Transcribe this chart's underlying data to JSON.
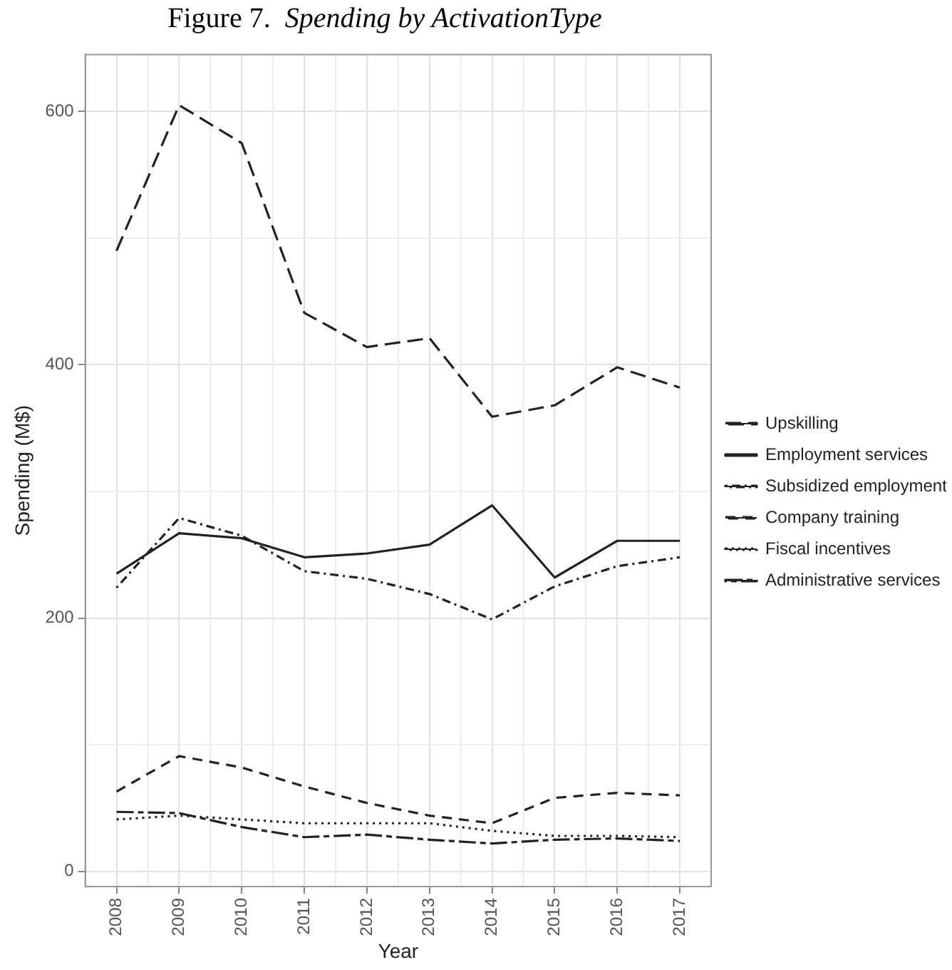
{
  "chart_data": {
    "type": "line",
    "title": "Figure 7.  Spending by ActivationType",
    "xlabel": "Year",
    "ylabel": "Spending (M$)",
    "categories": [
      "2008",
      "2009",
      "2010",
      "2011",
      "2012",
      "2013",
      "2014",
      "2015",
      "2016",
      "2017"
    ],
    "ylim": [
      -12,
      645
    ],
    "yticks": [
      0,
      {
        "value": 100,
        "label": null
      },
      200,
      {
        "value": 300,
        "label": null
      },
      400,
      {
        "value": 500,
        "label": null
      },
      600
    ],
    "grid": true,
    "legend": "right",
    "marker": "none",
    "series": [
      {
        "name": "Upskilling",
        "color": "#222222",
        "line_style": "longdash",
        "values": [
          490,
          605,
          575,
          441,
          414,
          421,
          359,
          368,
          398,
          382
        ]
      },
      {
        "name": "Employment services",
        "color": "#222222",
        "line_style": "solid",
        "values": [
          235,
          267,
          263,
          248,
          251,
          258,
          289,
          232,
          261,
          261
        ]
      },
      {
        "name": "Subsidized employment",
        "color": "#222222",
        "line_style": "dotdash",
        "values": [
          224,
          279,
          265,
          237,
          231,
          219,
          199,
          225,
          241,
          248
        ]
      },
      {
        "name": "Company training",
        "color": "#222222",
        "line_style": "dashed",
        "values": [
          63,
          91,
          82,
          67,
          54,
          44,
          38,
          58,
          62,
          60
        ]
      },
      {
        "name": "Fiscal incentives",
        "color": "#222222",
        "line_style": "dotted",
        "values": [
          41,
          44,
          41,
          38,
          38,
          38,
          32,
          28,
          28,
          27
        ]
      },
      {
        "name": "Administrative services",
        "color": "#222222",
        "line_style": "twodash",
        "values": [
          47,
          46,
          35,
          27,
          29,
          25,
          22,
          25,
          26,
          24
        ]
      }
    ]
  }
}
